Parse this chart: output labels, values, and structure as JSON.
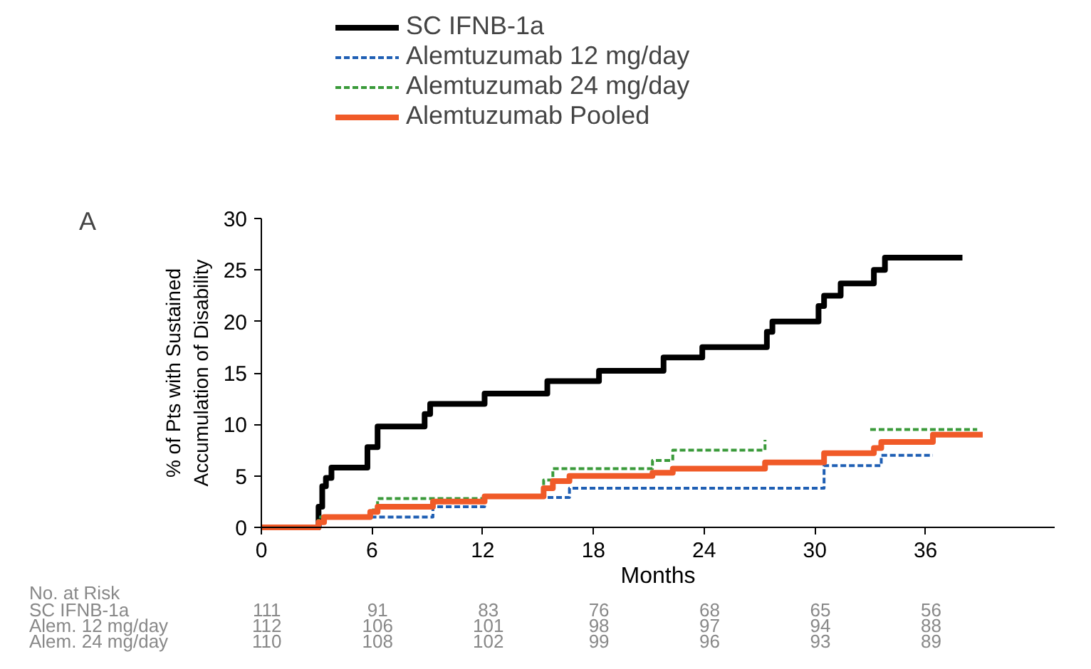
{
  "chart_data": {
    "type": "step",
    "xlabel": "Months",
    "ylabel": "% of Pts with Sustained\nAccumulation of Disability",
    "xlim": [
      0,
      43
    ],
    "xticks": [
      0,
      6,
      12,
      18,
      24,
      30,
      36
    ],
    "ylim": [
      0,
      30
    ],
    "yticks": [
      0,
      5,
      10,
      15,
      20,
      25,
      30
    ],
    "grid": false,
    "legend": "top",
    "series": [
      {
        "name": "SC IFNB-1a",
        "color": "#000000",
        "line_style": "solid",
        "x": [
          0,
          3.1,
          3.3,
          3.5,
          3.8,
          5.75,
          6.3,
          8.85,
          9.15,
          12.1,
          15.5,
          18.3,
          21.8,
          23.9,
          27.4,
          27.7,
          30.2,
          30.5,
          31.4,
          33.2,
          33.8,
          38.0
        ],
        "values": [
          0,
          2,
          4,
          4.8,
          5.8,
          7.8,
          9.8,
          11,
          12,
          13,
          14.2,
          15.2,
          16.5,
          17.5,
          19,
          20,
          21.5,
          22.5,
          23.7,
          25,
          26.2,
          26.2
        ]
      },
      {
        "name": "Alemtuzumab 12 mg/day",
        "color": "#1f5fb4",
        "line_style": "dashed",
        "x": [
          0,
          3.2,
          9.3,
          12.1,
          16.7,
          30.5,
          33.6,
          36.4
        ],
        "values": [
          0,
          1,
          2,
          2.9,
          3.8,
          6,
          7,
          7
        ]
      },
      {
        "name": "Alemtuzumab 24 mg/day",
        "color": "#3a9a3a",
        "line_style": "dashed",
        "x": [
          0,
          3.1,
          5.9,
          6.3,
          12.1,
          15.3,
          15.8,
          21.2,
          22.3,
          27.3,
          30,
          33.0,
          38.8
        ],
        "values": [
          0,
          1,
          1.7,
          2.8,
          3,
          4.6,
          5.7,
          6.5,
          7.5,
          8.5,
          null,
          9.5,
          9.5
        ]
      },
      {
        "name": "Alemtuzumab Pooled",
        "color": "#f05a28",
        "line_style": "solid",
        "x": [
          0,
          3.1,
          3.4,
          5.9,
          6.3,
          9.3,
          12.1,
          15.3,
          15.8,
          16.7,
          21.2,
          22.3,
          27.3,
          30.5,
          33.2,
          33.6,
          36.4,
          39.1
        ],
        "values": [
          0,
          0.5,
          1,
          1.5,
          2,
          2.5,
          3,
          3.8,
          4.5,
          5,
          5.3,
          5.7,
          6.3,
          7.2,
          7.7,
          8.3,
          9,
          9
        ]
      }
    ],
    "annotations": [
      "A",
      "No. at Risk",
      "SC IFNB-1a",
      "111",
      "91",
      "83",
      "76",
      "68",
      "65",
      "56",
      "Alem. 12 mg/day",
      "112",
      "106",
      "101",
      "98",
      "97",
      "94",
      "88",
      "Alem. 24 mg/day",
      "110",
      "108",
      "102",
      "99",
      "96",
      "93",
      "89"
    ]
  }
}
